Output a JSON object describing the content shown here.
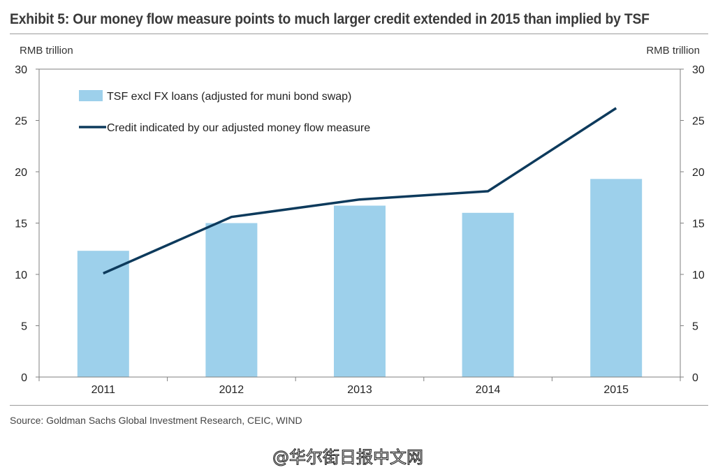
{
  "title": "Exhibit 5: Our money flow measure points to much larger credit extended in 2015 than implied by TSF",
  "left_unit": "RMB trillion",
  "right_unit": "RMB trillion",
  "source": "Source: Goldman Sachs Global Investment Research, CEIC, WIND",
  "watermark_text": "@华尔街日报中文网",
  "colors": {
    "bar": "#9dd0eb",
    "line": "#0d3a5c",
    "axis": "#7f7f7f"
  },
  "chart_data": {
    "type": "bar",
    "categories": [
      "2011",
      "2012",
      "2013",
      "2014",
      "2015"
    ],
    "ylim": [
      0,
      30
    ],
    "yticks": [
      0,
      5,
      10,
      15,
      20,
      25,
      30
    ],
    "y2lim": [
      0,
      30
    ],
    "grid": false,
    "legend_position": "top-left",
    "series": [
      {
        "name": "TSF excl FX loans (adjusted for muni bond swap)",
        "type": "bar",
        "values": [
          12.3,
          15.0,
          16.7,
          16.0,
          19.3
        ]
      },
      {
        "name": "Credit indicated by our adjusted money flow measure",
        "type": "line",
        "values": [
          10.1,
          15.6,
          17.3,
          18.1,
          26.2
        ]
      }
    ]
  }
}
